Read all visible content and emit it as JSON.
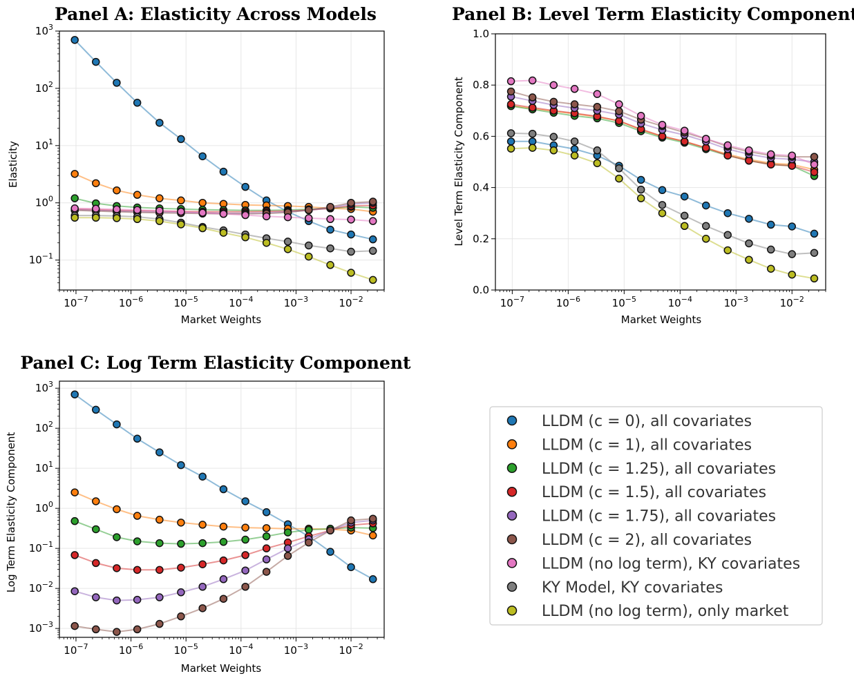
{
  "colors": {
    "series": [
      "#1f77b4",
      "#ff7f0e",
      "#2ca02c",
      "#d62728",
      "#9467bd",
      "#8c564b",
      "#e377c2",
      "#7f7f7f",
      "#bcbd22"
    ],
    "grid": "#e6e6e6",
    "axis": "#000000"
  },
  "legend": {
    "position": "lower-right",
    "entries": [
      "LLDM (c = 0), all covariates",
      "LLDM (c = 1), all covariates",
      "LLDM (c = 1.25), all covariates",
      "LLDM (c = 1.5), all covariates",
      "LLDM (c = 1.75), all covariates",
      "LLDM (c = 2), all covariates",
      "LLDM (no log term), KY covariates",
      "KY Model, KY covariates",
      "LLDM (no log term), only market"
    ]
  },
  "chart_data": [
    {
      "type": "line",
      "title": "Panel A: Elasticity Across Models",
      "xlabel": "Market Weights",
      "ylabel": "Elasticity",
      "xscale": "log",
      "yscale": "log",
      "xlim": [
        5e-08,
        0.04
      ],
      "ylim": [
        0.03,
        1000
      ],
      "grid": true,
      "x": [
        9.5e-08,
        2.3e-07,
        5.5e-07,
        1.3e-06,
        3.3e-06,
        8.1e-06,
        2e-05,
        4.8e-05,
        0.00012,
        0.00029,
        0.00071,
        0.0017,
        0.0042,
        0.01,
        0.025
      ],
      "series": [
        {
          "name": "LLDM (c = 0), all covariates",
          "values": [
            700,
            290,
            125,
            56,
            25,
            13,
            6.5,
            3.5,
            1.9,
            1.1,
            0.7,
            0.48,
            0.34,
            0.28,
            0.23
          ]
        },
        {
          "name": "LLDM (c = 1), all covariates",
          "values": [
            3.2,
            2.2,
            1.65,
            1.38,
            1.2,
            1.1,
            1.0,
            0.96,
            0.92,
            0.9,
            0.88,
            0.85,
            0.8,
            0.78,
            0.7
          ]
        },
        {
          "name": "LLDM (c = 1.25), all covariates",
          "values": [
            1.2,
            0.98,
            0.88,
            0.83,
            0.8,
            0.78,
            0.76,
            0.75,
            0.74,
            0.74,
            0.75,
            0.77,
            0.8,
            0.85,
            0.82
          ]
        },
        {
          "name": "LLDM (c = 1.5), all covariates",
          "values": [
            0.78,
            0.76,
            0.74,
            0.73,
            0.72,
            0.71,
            0.7,
            0.7,
            0.7,
            0.71,
            0.72,
            0.75,
            0.8,
            0.88,
            0.9
          ]
        },
        {
          "name": "LLDM (c = 1.75), all covariates",
          "values": [
            0.76,
            0.74,
            0.72,
            0.7,
            0.69,
            0.68,
            0.67,
            0.66,
            0.66,
            0.67,
            0.7,
            0.74,
            0.82,
            0.95,
            1.0
          ]
        },
        {
          "name": "LLDM (c = 2), all covariates",
          "values": [
            0.74,
            0.72,
            0.7,
            0.68,
            0.67,
            0.66,
            0.65,
            0.64,
            0.64,
            0.65,
            0.68,
            0.75,
            0.85,
            1.0,
            1.05
          ]
        },
        {
          "name": "LLDM (no log term), KY covariates",
          "values": [
            0.8,
            0.79,
            0.77,
            0.75,
            0.73,
            0.7,
            0.67,
            0.64,
            0.61,
            0.58,
            0.56,
            0.54,
            0.52,
            0.51,
            0.48
          ]
        },
        {
          "name": "KY Model, KY covariates",
          "values": [
            0.6,
            0.6,
            0.59,
            0.57,
            0.52,
            0.45,
            0.38,
            0.33,
            0.28,
            0.24,
            0.21,
            0.18,
            0.16,
            0.14,
            0.145
          ]
        },
        {
          "name": "LLDM (no log term), only market",
          "values": [
            0.55,
            0.55,
            0.54,
            0.52,
            0.48,
            0.42,
            0.36,
            0.3,
            0.25,
            0.2,
            0.155,
            0.115,
            0.082,
            0.06,
            0.045
          ]
        }
      ],
      "yticks": [
        "10^-1",
        "10^0",
        "10^1",
        "10^2",
        "10^3"
      ],
      "xticks": [
        "10^-7",
        "10^-6",
        "10^-5",
        "10^-4",
        "10^-3",
        "10^-2"
      ]
    },
    {
      "type": "line",
      "title": "Panel B: Level Term Elasticity Component",
      "xlabel": "Market Weights",
      "ylabel": "Level Term Elasticity Component",
      "xscale": "log",
      "yscale": "linear",
      "xlim": [
        5e-08,
        0.04
      ],
      "ylim": [
        0.0,
        1.0
      ],
      "grid": true,
      "x": [
        9.5e-08,
        2.3e-07,
        5.5e-07,
        1.3e-06,
        3.3e-06,
        8.1e-06,
        2e-05,
        4.8e-05,
        0.00012,
        0.00029,
        0.00071,
        0.0017,
        0.0042,
        0.01,
        0.025
      ],
      "series": [
        {
          "name": "LLDM (c = 0), all covariates",
          "values": [
            0.58,
            0.58,
            0.565,
            0.55,
            0.525,
            0.485,
            0.43,
            0.39,
            0.365,
            0.33,
            0.3,
            0.278,
            0.255,
            0.248,
            0.22
          ]
        },
        {
          "name": "LLDM (c = 1), all covariates",
          "values": [
            0.72,
            0.708,
            0.698,
            0.688,
            0.676,
            0.66,
            0.625,
            0.6,
            0.58,
            0.555,
            0.53,
            0.51,
            0.495,
            0.49,
            0.47
          ]
        },
        {
          "name": "LLDM (c = 1.25), all covariates",
          "values": [
            0.718,
            0.705,
            0.692,
            0.68,
            0.67,
            0.652,
            0.62,
            0.595,
            0.575,
            0.55,
            0.525,
            0.505,
            0.49,
            0.485,
            0.445
          ]
        },
        {
          "name": "LLDM (c = 1.5), all covariates",
          "values": [
            0.725,
            0.712,
            0.7,
            0.69,
            0.678,
            0.66,
            0.628,
            0.6,
            0.58,
            0.555,
            0.525,
            0.505,
            0.49,
            0.485,
            0.46
          ]
        },
        {
          "name": "LLDM (c = 1.75), all covariates",
          "values": [
            0.755,
            0.738,
            0.722,
            0.71,
            0.7,
            0.685,
            0.65,
            0.625,
            0.605,
            0.58,
            0.55,
            0.53,
            0.515,
            0.51,
            0.5
          ]
        },
        {
          "name": "LLDM (c = 2), all covariates",
          "values": [
            0.775,
            0.752,
            0.735,
            0.725,
            0.715,
            0.698,
            0.665,
            0.64,
            0.615,
            0.59,
            0.56,
            0.54,
            0.525,
            0.52,
            0.52
          ]
        },
        {
          "name": "LLDM (no log term), KY covariates",
          "values": [
            0.815,
            0.818,
            0.8,
            0.785,
            0.765,
            0.725,
            0.68,
            0.645,
            0.622,
            0.59,
            0.565,
            0.545,
            0.53,
            0.525,
            0.49
          ]
        },
        {
          "name": "KY Model, KY covariates",
          "values": [
            0.612,
            0.61,
            0.598,
            0.58,
            0.545,
            0.475,
            0.392,
            0.332,
            0.29,
            0.25,
            0.215,
            0.182,
            0.158,
            0.14,
            0.145
          ]
        },
        {
          "name": "LLDM (no log term), only market",
          "values": [
            0.552,
            0.555,
            0.545,
            0.525,
            0.495,
            0.435,
            0.358,
            0.3,
            0.25,
            0.2,
            0.155,
            0.118,
            0.083,
            0.06,
            0.045
          ]
        }
      ],
      "yticks": [
        "0.0",
        "0.2",
        "0.4",
        "0.6",
        "0.8",
        "1.0"
      ],
      "xticks": [
        "10^-7",
        "10^-6",
        "10^-5",
        "10^-4",
        "10^-3",
        "10^-2"
      ]
    },
    {
      "type": "line",
      "title": "Panel C: Log Term Elasticity Component",
      "xlabel": "Market Weights",
      "ylabel": "Log Term Elasticity Component",
      "xscale": "log",
      "yscale": "log",
      "xlim": [
        5e-08,
        0.04
      ],
      "ylim": [
        0.0006,
        1500
      ],
      "grid": true,
      "x": [
        9.5e-08,
        2.3e-07,
        5.5e-07,
        1.3e-06,
        3.3e-06,
        8.1e-06,
        2e-05,
        4.8e-05,
        0.00012,
        0.00029,
        0.00071,
        0.0017,
        0.0042,
        0.01,
        0.025
      ],
      "series": [
        {
          "name": "LLDM (c = 0), all covariates",
          "values": [
            700,
            290,
            125,
            55,
            25,
            12,
            6.2,
            3.0,
            1.5,
            0.8,
            0.4,
            0.2,
            0.082,
            0.034,
            0.017
          ]
        },
        {
          "name": "LLDM (c = 1), all covariates",
          "values": [
            2.5,
            1.5,
            0.95,
            0.65,
            0.52,
            0.44,
            0.39,
            0.35,
            0.33,
            0.32,
            0.31,
            0.31,
            0.3,
            0.28,
            0.21
          ]
        },
        {
          "name": "LLDM (c = 1.25), all covariates",
          "values": [
            0.48,
            0.3,
            0.19,
            0.15,
            0.135,
            0.13,
            0.135,
            0.145,
            0.165,
            0.2,
            0.25,
            0.29,
            0.31,
            0.33,
            0.32
          ]
        },
        {
          "name": "LLDM (c = 1.5), all covariates",
          "values": [
            0.068,
            0.043,
            0.032,
            0.029,
            0.029,
            0.033,
            0.04,
            0.05,
            0.068,
            0.1,
            0.14,
            0.2,
            0.28,
            0.38,
            0.42
          ]
        },
        {
          "name": "LLDM (c = 1.75), all covariates",
          "values": [
            0.0085,
            0.006,
            0.005,
            0.0052,
            0.006,
            0.008,
            0.011,
            0.017,
            0.028,
            0.053,
            0.1,
            0.17,
            0.28,
            0.44,
            0.5
          ]
        },
        {
          "name": "LLDM (c = 2), all covariates",
          "values": [
            0.00115,
            0.00095,
            0.00082,
            0.00095,
            0.0013,
            0.002,
            0.0032,
            0.0055,
            0.011,
            0.026,
            0.065,
            0.14,
            0.28,
            0.5,
            0.55
          ]
        }
      ],
      "yticks": [
        "10^-3",
        "10^-2",
        "10^-1",
        "10^0",
        "10^1",
        "10^2",
        "10^3"
      ],
      "xticks": [
        "10^-7",
        "10^-6",
        "10^-5",
        "10^-4",
        "10^-3",
        "10^-2"
      ]
    }
  ]
}
